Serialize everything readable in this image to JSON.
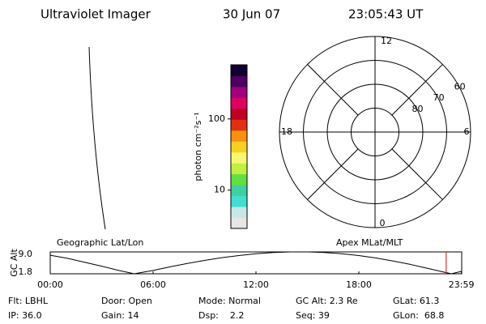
{
  "header": {
    "instrument": "Ultraviolet Imager",
    "date": "30 Jun 07",
    "time": "23:05:43 UT"
  },
  "image_panel": {
    "label": "Geographic Lat/Lon"
  },
  "chart_data": [
    {
      "type": "colorbar",
      "label": "photon cm⁻²s⁻¹",
      "log_scale": true,
      "ylim": [
        2.9,
        575
      ],
      "yticks": [
        10,
        100
      ],
      "colors": [
        "#e6e6e6",
        "#c8e8e8",
        "#40e0d0",
        "#40d0a0",
        "#60e040",
        "#c0f040",
        "#f8f870",
        "#f8d020",
        "#f89010",
        "#e03010",
        "#c00020",
        "#e00060",
        "#a00080",
        "#500060",
        "#100030"
      ]
    },
    {
      "type": "polar",
      "label": "Apex MLat/MLT",
      "rlim": [
        90,
        50
      ],
      "rticks": [
        80,
        70,
        60,
        50
      ],
      "rtick_labels": [
        {
          "value": 80,
          "label": "80"
        },
        {
          "value": 70,
          "label": "70"
        },
        {
          "value": 60,
          "label": "60"
        }
      ],
      "mlt_labels": [
        "12",
        "18",
        "0",
        "6"
      ]
    },
    {
      "type": "line",
      "ylabel": "GC Alt",
      "color": "#000000",
      "x": [
        0,
        1,
        2,
        3,
        4,
        4.9,
        6,
        7,
        8,
        9,
        10,
        11,
        12,
        13,
        14,
        15,
        16,
        17,
        18,
        19,
        20,
        21,
        22,
        23,
        23.4,
        23.983
      ],
      "values": [
        7.9,
        6.9,
        5.6,
        4.3,
        2.9,
        1.8,
        2.9,
        4.1,
        5.2,
        6.2,
        7.1,
        7.8,
        8.4,
        8.8,
        9.0,
        9.0,
        8.8,
        8.4,
        7.8,
        7.0,
        6.0,
        4.9,
        3.6,
        2.3,
        1.8,
        2.6
      ],
      "xlim": [
        0,
        24
      ],
      "xticks": [
        {
          "value": 0,
          "label": "00:00"
        },
        {
          "value": 6,
          "label": "06:00"
        },
        {
          "value": 12,
          "label": "12:00"
        },
        {
          "value": 18,
          "label": "18:00"
        },
        {
          "value": 23.983,
          "label": "23:59"
        }
      ],
      "ylim": [
        1.8,
        9.0
      ],
      "yticks": [
        {
          "value": 9.0,
          "label": "9.0"
        },
        {
          "value": 1.8,
          "label": "1.8"
        }
      ],
      "marker_x": 23.095,
      "marker_color": "#e00000"
    }
  ],
  "status": [
    [
      "Flt: LBHL",
      "Door: Open",
      "Mode: Normal",
      "GC Alt: 2.3 Re",
      "GLat: 61.3"
    ],
    [
      "IP: 36.0",
      "Gain: 14",
      "Dsp:    2.2",
      "Seq: 39",
      "GLon:  68.8"
    ]
  ]
}
